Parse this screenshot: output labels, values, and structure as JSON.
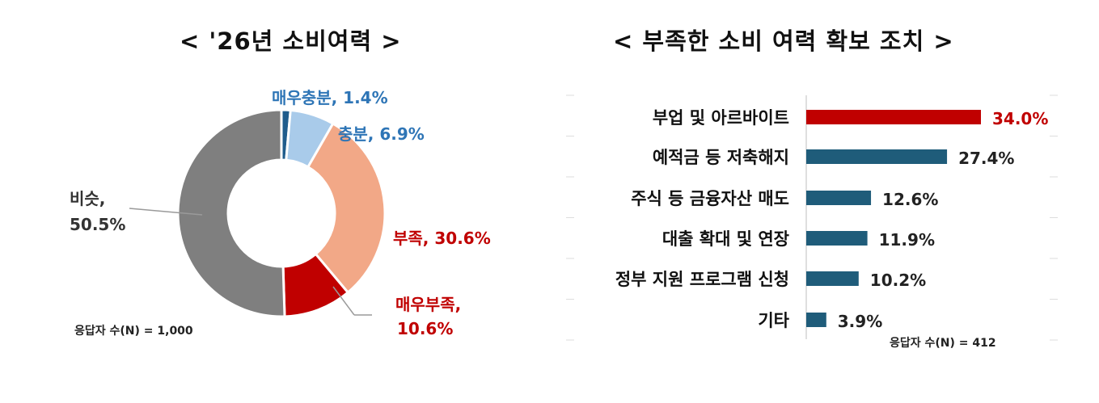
{
  "chart_data": [
    {
      "type": "pie",
      "title": "< '26년 소비여력 >",
      "categories": [
        "매우충분",
        "충분",
        "부족",
        "매우부족",
        "비슷"
      ],
      "values": [
        1.4,
        6.9,
        30.6,
        10.6,
        50.5
      ],
      "label_texts": [
        "매우충분, 1.4%",
        "충분, 6.9%",
        "부족, 30.6%",
        "매우부족,",
        "비슷,"
      ],
      "label_values": [
        "",
        "",
        "",
        "10.6%",
        "50.5%"
      ],
      "colors": [
        "#1f5c8c",
        "#a9cbea",
        "#f2a887",
        "#c00000",
        "#7f7f7f"
      ],
      "label_colors": [
        "#2e75b6",
        "#2e75b6",
        "#c00000",
        "#c00000",
        "#333333"
      ],
      "note": "응답자 수(N) = 1,000"
    },
    {
      "type": "bar",
      "orientation": "horizontal",
      "title": "< 부족한 소비 여력 확보 조치 >",
      "categories": [
        "부업 및 아르바이트",
        "예적금 등 저축해지",
        "주식 등 금융자산 매도",
        "대출 확대 및 연장",
        "정부 지원 프로그램 신청",
        "기타"
      ],
      "values": [
        34.0,
        27.4,
        12.6,
        11.9,
        10.2,
        3.9
      ],
      "value_labels": [
        "34.0%",
        "27.4%",
        "12.6%",
        "11.9%",
        "10.2%",
        "3.9%"
      ],
      "colors": [
        "#c00000",
        "#1f5c7a",
        "#1f5c7a",
        "#1f5c7a",
        "#1f5c7a",
        "#1f5c7a"
      ],
      "label_colors": [
        "#c00000",
        "#222222",
        "#222222",
        "#222222",
        "#222222",
        "#222222"
      ],
      "note": "응답자 수(N) = 412"
    }
  ]
}
